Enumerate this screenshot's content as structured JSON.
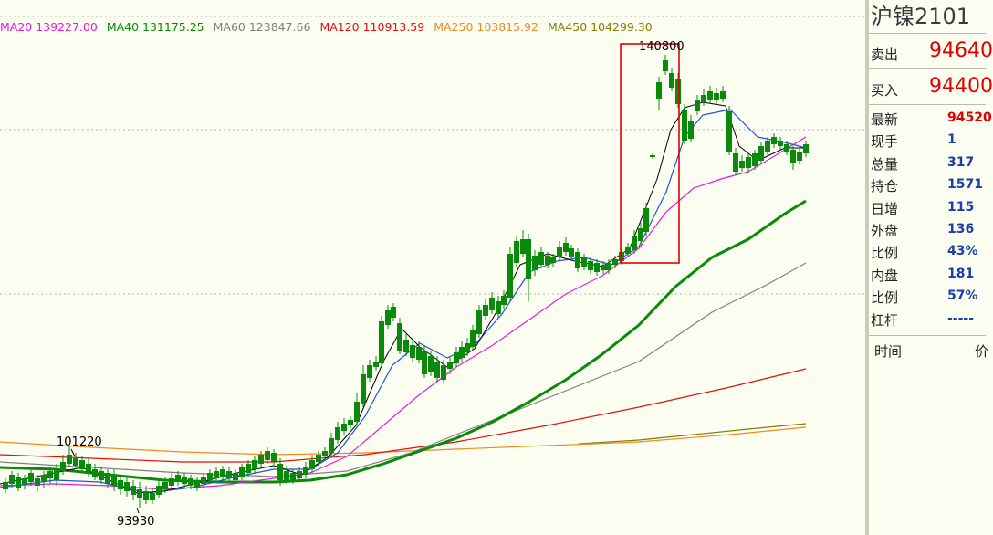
{
  "ma_legend": [
    {
      "label": "MA20 139227.00",
      "color": "#e020e0"
    },
    {
      "label": "MA40 131175.25",
      "color": "#0a8a0a"
    },
    {
      "label": "MA60 123847.66",
      "color": "#808080"
    },
    {
      "label": "MA120 110913.59",
      "color": "#e01010"
    },
    {
      "label": "MA250 103815.92",
      "color": "#f08a20"
    },
    {
      "label": "MA450 104299.30",
      "color": "#808000"
    }
  ],
  "chart_labels": {
    "high": "140800",
    "left_high": "101220",
    "low": "93930"
  },
  "quote": {
    "title": "沪镍2101",
    "sell_label": "卖出",
    "sell_value": "94640",
    "buy_label": "买入",
    "buy_value": "94400",
    "stats": [
      {
        "label": "最新",
        "value": "94520",
        "color": "red"
      },
      {
        "label": "现手",
        "value": "1",
        "color": "blue"
      },
      {
        "label": "总量",
        "value": "317",
        "color": "blue"
      },
      {
        "label": "持仓",
        "value": "1571",
        "color": "blue"
      },
      {
        "label": "日增",
        "value": "115",
        "color": "blue"
      },
      {
        "label": "外盘",
        "value": "136",
        "color": "blue"
      },
      {
        "label": "比例",
        "value": "43%",
        "color": "blue"
      },
      {
        "label": "内盘",
        "value": "181",
        "color": "blue"
      },
      {
        "label": "比例",
        "value": "57%",
        "color": "blue"
      },
      {
        "label": "杠杆",
        "value": "-----",
        "color": "blue"
      }
    ],
    "ticks_time_label": "时间",
    "ticks_price_label": "价"
  },
  "colors": {
    "up": "#e83030",
    "down": "#0a8a0a",
    "ma5": "#000000",
    "ma10": "#1f55d8",
    "ma20": "#e020e0",
    "ma40": "#0a8a0a",
    "ma60": "#808080",
    "ma120": "#e01010",
    "ma250": "#f08a20",
    "ma450": "#808000",
    "highlight_box": "#e00000"
  }
}
